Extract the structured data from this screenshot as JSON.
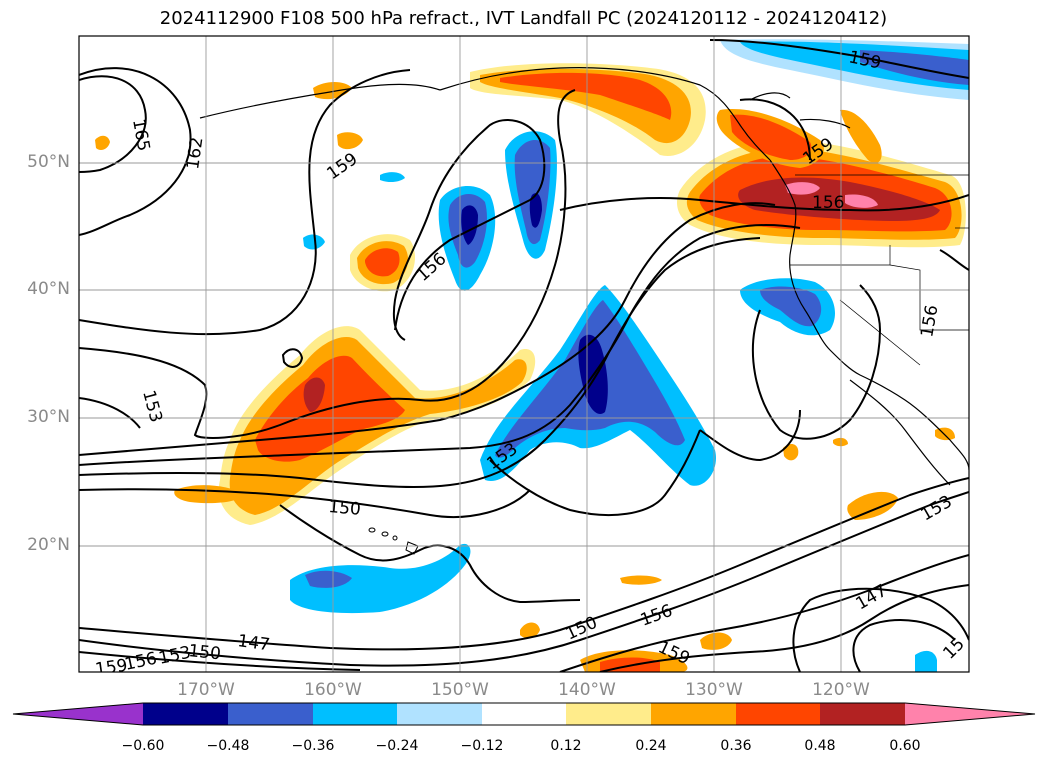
{
  "title": "2024112900 F108 500 hPa refract., IVT Landfall PC (2024120112 - 2024120412)",
  "lat_labels": [
    "50°N",
    "40°N",
    "30°N",
    "20°N"
  ],
  "lon_labels": [
    "170°W",
    "160°W",
    "150°W",
    "140°W",
    "130°W",
    "120°W"
  ],
  "colorbar": {
    "colors": [
      "#9932cc",
      "#00008b",
      "#3a5fcd",
      "#00bfff",
      "#b0e2ff",
      "#ffffff",
      "#ffec8b",
      "#ffa500",
      "#ff4500",
      "#b22222",
      "#ff82ab"
    ],
    "ticks": [
      "−0.60",
      "−0.48",
      "−0.36",
      "−0.24",
      "−0.12",
      "0.12",
      "0.24",
      "0.36",
      "0.48",
      "0.60"
    ]
  },
  "contour_labels": [
    "159",
    "165",
    "162",
    "159",
    "156",
    "159",
    "156",
    "156",
    "153",
    "153",
    "150",
    "153",
    "147",
    "150",
    "147",
    "150",
    "153",
    "156",
    "159",
    "156",
    "159",
    "15"
  ]
}
